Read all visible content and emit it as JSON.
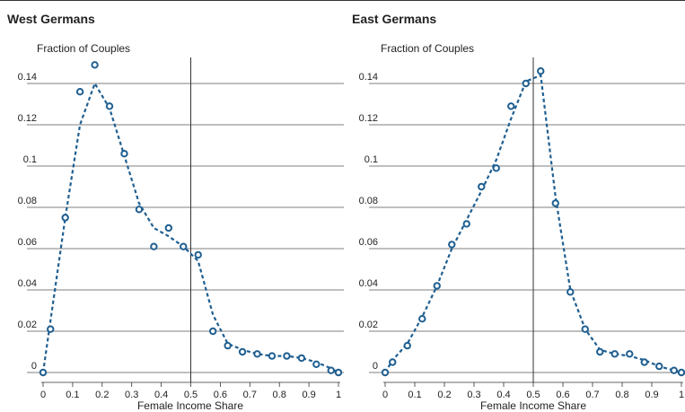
{
  "chart_data": [
    {
      "type": "scatter",
      "title": "West Germans",
      "ylabel": "Fraction of Couples",
      "xlabel": "Female Income Share",
      "xlim": [
        0,
        1
      ],
      "ylim": [
        0,
        0.15
      ],
      "x_ticks": [
        "0",
        "0.1",
        "0.2",
        "0.3",
        "0.4",
        "0.5",
        "0.6",
        "0.7",
        "0.8",
        "0.9",
        "1"
      ],
      "y_ticks": [
        "0",
        "0.02",
        "0.04",
        "0.06",
        "0.08",
        "0.1",
        "0.12",
        "0.14"
      ],
      "grid": "horizontal",
      "reference_line_x": 0.5,
      "accent_color": "#1f5f91",
      "series": [
        {
          "x": [
            0,
            0.025,
            0.075,
            0.125,
            0.175,
            0.225,
            0.275,
            0.325,
            0.375,
            0.425,
            0.475,
            0.525,
            0.575,
            0.625,
            0.675,
            0.725,
            0.775,
            0.825,
            0.875,
            0.925,
            0.975,
            1.0
          ],
          "y": [
            0,
            0.021,
            0.075,
            0.136,
            0.149,
            0.129,
            0.106,
            0.079,
            0.061,
            0.07,
            0.061,
            0.057,
            0.02,
            0.013,
            0.01,
            0.009,
            0.008,
            0.008,
            0.007,
            0.004,
            0.001,
            0
          ]
        },
        {
          "x": [
            0,
            0.025,
            0.075,
            0.125,
            0.175,
            0.225,
            0.275,
            0.325,
            0.375,
            0.425,
            0.475,
            0.525,
            0.575,
            0.625,
            0.675,
            0.725,
            0.775,
            0.825,
            0.875,
            0.925,
            0.975,
            1.0
          ],
          "y": [
            0,
            0.025,
            0.075,
            0.12,
            0.14,
            0.128,
            0.105,
            0.082,
            0.07,
            0.066,
            0.061,
            0.054,
            0.028,
            0.014,
            0.011,
            0.009,
            0.008,
            0.008,
            0.007,
            0.005,
            0.002,
            0
          ]
        }
      ]
    },
    {
      "type": "scatter",
      "title": "East Germans",
      "ylabel": "Fraction of Couples",
      "xlabel": "Female Income Share",
      "xlim": [
        0,
        1
      ],
      "ylim": [
        0,
        0.15
      ],
      "x_ticks": [
        "0",
        "0.1",
        "0.2",
        "0.3",
        "0.4",
        "0.5",
        "0.6",
        "0.7",
        "0.8",
        "0.9",
        "1"
      ],
      "y_ticks": [
        "0",
        "0.02",
        "0.04",
        "0.06",
        "0.08",
        "0.1",
        "0.12",
        "0.14"
      ],
      "grid": "horizontal",
      "reference_line_x": 0.5,
      "accent_color": "#1f5f91",
      "series": [
        {
          "x": [
            0,
            0.025,
            0.075,
            0.125,
            0.175,
            0.225,
            0.275,
            0.325,
            0.375,
            0.425,
            0.475,
            0.525,
            0.575,
            0.625,
            0.675,
            0.725,
            0.775,
            0.825,
            0.875,
            0.925,
            0.975,
            1.0
          ],
          "y": [
            0,
            0.005,
            0.013,
            0.026,
            0.042,
            0.062,
            0.072,
            0.09,
            0.099,
            0.129,
            0.14,
            0.146,
            0.082,
            0.039,
            0.021,
            0.01,
            0.009,
            0.009,
            0.005,
            0.003,
            0.001,
            0
          ]
        },
        {
          "x": [
            0,
            0.025,
            0.075,
            0.125,
            0.175,
            0.225,
            0.275,
            0.325,
            0.375,
            0.425,
            0.475,
            0.525,
            0.575,
            0.625,
            0.675,
            0.725,
            0.775,
            0.825,
            0.875,
            0.925,
            0.975,
            1.0
          ],
          "y": [
            0,
            0.006,
            0.014,
            0.027,
            0.042,
            0.06,
            0.074,
            0.088,
            0.103,
            0.123,
            0.141,
            0.144,
            0.085,
            0.04,
            0.021,
            0.011,
            0.009,
            0.008,
            0.006,
            0.003,
            0.001,
            0
          ]
        }
      ]
    }
  ]
}
